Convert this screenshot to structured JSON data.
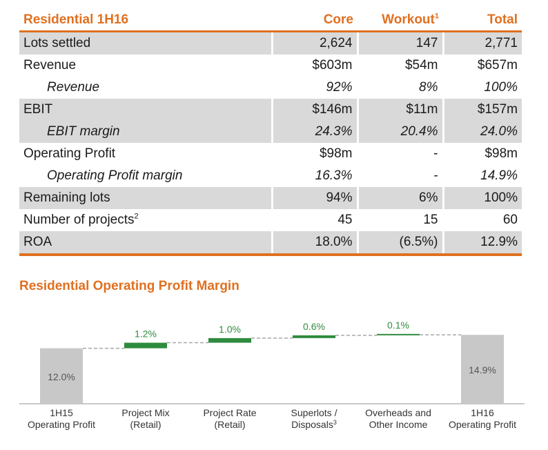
{
  "table": {
    "headers": {
      "label": "Residential 1H16",
      "core": "Core",
      "workout": "Workout",
      "workout_sup": "1",
      "total": "Total"
    },
    "rows": [
      {
        "label": "Lots settled",
        "sup": "",
        "core": "2,624",
        "workout": "147",
        "total": "2,771",
        "shade": true,
        "sub": false
      },
      {
        "label": "Revenue",
        "sup": "",
        "core": "$603m",
        "workout": "$54m",
        "total": "$657m",
        "shade": false,
        "sub": false
      },
      {
        "label": "Revenue",
        "sup": "",
        "core": "92%",
        "workout": "8%",
        "total": "100%",
        "shade": false,
        "sub": true
      },
      {
        "label": "EBIT",
        "sup": "",
        "core": "$146m",
        "workout": "$11m",
        "total": "$157m",
        "shade": true,
        "sub": false
      },
      {
        "label": "EBIT margin",
        "sup": "",
        "core": "24.3%",
        "workout": "20.4%",
        "total": "24.0%",
        "shade": true,
        "sub": true
      },
      {
        "label": "Operating Profit",
        "sup": "",
        "core": "$98m",
        "workout": "-",
        "total": "$98m",
        "shade": false,
        "sub": false
      },
      {
        "label": "Operating Profit  margin",
        "sup": "",
        "core": "16.3%",
        "workout": "-",
        "total": "14.9%",
        "shade": false,
        "sub": true
      },
      {
        "label": "Remaining lots",
        "sup": "",
        "core": "94%",
        "workout": "6%",
        "total": "100%",
        "shade": true,
        "sub": false
      },
      {
        "label": "Number of projects",
        "sup": "2",
        "core": "45",
        "workout": "15",
        "total": "60",
        "shade": false,
        "sub": false
      },
      {
        "label": "ROA",
        "sup": "",
        "core": "18.0%",
        "workout": "(6.5%)",
        "total": "12.9%",
        "shade": true,
        "sub": false
      }
    ]
  },
  "chart_data": {
    "type": "bar",
    "subtype": "waterfall",
    "title": "Residential Operating Profit Margin",
    "categories": [
      [
        "1H15",
        "Operating Profit"
      ],
      [
        "Project Mix",
        "(Retail)"
      ],
      [
        "Project Rate",
        "(Retail)"
      ],
      [
        "Superlots /",
        "Disposals"
      ],
      [
        "Overheads and",
        "Other Income"
      ],
      [
        "1H16",
        "Operating Profit"
      ]
    ],
    "category_sups": [
      "",
      "",
      "",
      "3",
      "",
      ""
    ],
    "values": [
      12.0,
      1.2,
      1.0,
      0.6,
      0.1,
      14.9
    ],
    "kinds": [
      "total",
      "delta",
      "delta",
      "delta",
      "delta",
      "total"
    ],
    "labels": [
      "12.0%",
      "1.2%",
      "1.0%",
      "0.6%",
      "0.1%",
      "14.9%"
    ],
    "colors": {
      "total": "#c8c8c8",
      "delta": "#2e8b3e",
      "connector": "#a6a6a6",
      "axis": "#a6a6a6",
      "delta_label": "#2e8b3e",
      "total_label": "#555555"
    }
  }
}
